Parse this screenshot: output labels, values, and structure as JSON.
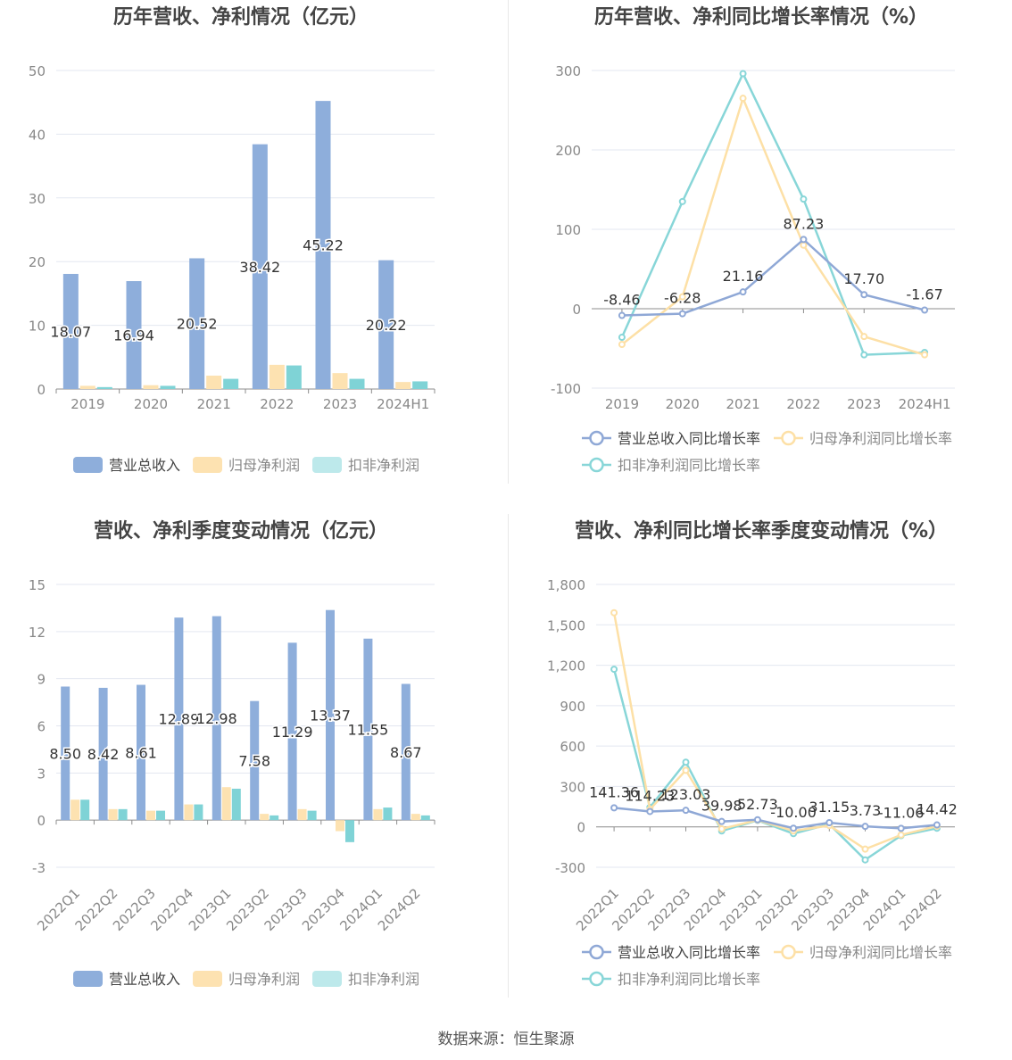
{
  "colors": {
    "revenue": "#8eaedb",
    "net_profit": "#fde2b1",
    "deducted_profit": "#7fd3d6",
    "legend_deducted": "#bde9eb",
    "revenue_line": "#8fa8d6",
    "net_line": "#fde0a6",
    "deducted_line": "#88d6d8"
  },
  "source": "数据来源：恒生聚源",
  "chart_data": [
    {
      "type": "bar",
      "title": "历年营收、净利情况（亿元）",
      "categories": [
        "2019",
        "2020",
        "2021",
        "2022",
        "2023",
        "2024H1"
      ],
      "yticks": [
        "50",
        "40",
        "30",
        "20",
        "10",
        "0"
      ],
      "ylim": [
        0,
        50
      ],
      "series": [
        {
          "name": "营业总收入",
          "values": [
            18.07,
            16.94,
            20.52,
            38.42,
            45.22,
            20.22
          ],
          "labels": [
            "18.07",
            "16.94",
            "20.52",
            "38.42",
            "45.22",
            "20.22"
          ]
        },
        {
          "name": "归母净利润",
          "values": [
            0.5,
            0.6,
            2.1,
            3.8,
            2.5,
            1.1
          ]
        },
        {
          "name": "扣非净利润",
          "values": [
            0.3,
            0.5,
            1.6,
            3.7,
            1.6,
            1.2
          ]
        }
      ]
    },
    {
      "type": "line",
      "title": "历年营收、净利同比增长率情况（%）",
      "categories": [
        "2019",
        "2020",
        "2021",
        "2022",
        "2023",
        "2024H1"
      ],
      "yticks": [
        "300",
        "200",
        "100",
        "0",
        "-100"
      ],
      "ylim": [
        -100,
        300
      ],
      "series": [
        {
          "name": "营业总收入同比增长率",
          "values": [
            -8.46,
            -6.28,
            21.16,
            87.23,
            17.7,
            -1.67
          ],
          "labels": [
            "-8.46",
            "-6.28",
            "21.16",
            "87.23",
            "17.70",
            "-1.67"
          ]
        },
        {
          "name": "归母净利润同比增长率",
          "values": [
            -45,
            15,
            265,
            80,
            -35,
            -58
          ]
        },
        {
          "name": "扣非净利润同比增长率",
          "values": [
            -36,
            135,
            296,
            138,
            -58,
            -55
          ]
        }
      ]
    },
    {
      "type": "bar",
      "title": "营收、净利季度变动情况（亿元）",
      "categories": [
        "2022Q1",
        "2022Q2",
        "2022Q3",
        "2022Q4",
        "2023Q1",
        "2023Q2",
        "2023Q3",
        "2023Q4",
        "2024Q1",
        "2024Q2"
      ],
      "yticks": [
        "15",
        "12",
        "9",
        "6",
        "3",
        "0",
        "-3"
      ],
      "ylim": [
        -3,
        15
      ],
      "series": [
        {
          "name": "营业总收入",
          "values": [
            8.5,
            8.42,
            8.61,
            12.89,
            12.98,
            7.58,
            11.29,
            13.37,
            11.55,
            8.67
          ],
          "labels": [
            "8.50",
            "8.42",
            "8.61",
            "12.89",
            "12.98",
            "7.58",
            "11.29",
            "13.37",
            "11.55",
            "8.67"
          ]
        },
        {
          "name": "归母净利润",
          "values": [
            1.3,
            0.7,
            0.6,
            1.0,
            2.1,
            0.4,
            0.7,
            -0.7,
            0.7,
            0.4
          ]
        },
        {
          "name": "扣非净利润",
          "values": [
            1.3,
            0.7,
            0.6,
            1.0,
            2.0,
            0.3,
            0.6,
            -1.4,
            0.8,
            0.3
          ]
        }
      ]
    },
    {
      "type": "line",
      "title": "营收、净利同比增长率季度变动情况（%）",
      "categories": [
        "2022Q1",
        "2022Q2",
        "2022Q3",
        "2022Q4",
        "2023Q1",
        "2023Q2",
        "2023Q3",
        "2023Q4",
        "2024Q1",
        "2024Q2"
      ],
      "yticks": [
        "1,800",
        "1,500",
        "1,200",
        "900",
        "600",
        "300",
        "0",
        "-300"
      ],
      "ylim": [
        -300,
        1800
      ],
      "series": [
        {
          "name": "营业总收入同比增长率",
          "values": [
            141.36,
            114.23,
            123.03,
            39.98,
            52.73,
            -10.0,
            31.15,
            3.73,
            -11.06,
            14.42
          ],
          "labels": [
            "141.36",
            "114.23",
            "123.03",
            "39.98",
            "52.73",
            "-10.00",
            "31.15",
            "3.73",
            "-11.06",
            "14.42"
          ]
        },
        {
          "name": "归母净利润同比增长率",
          "values": [
            1590,
            130,
            420,
            -15,
            50,
            -30,
            10,
            -165,
            -60,
            5
          ]
        },
        {
          "name": "扣非净利润同比增长率",
          "values": [
            1170,
            145,
            480,
            -30,
            48,
            -50,
            20,
            -245,
            -65,
            -10
          ]
        }
      ]
    }
  ]
}
